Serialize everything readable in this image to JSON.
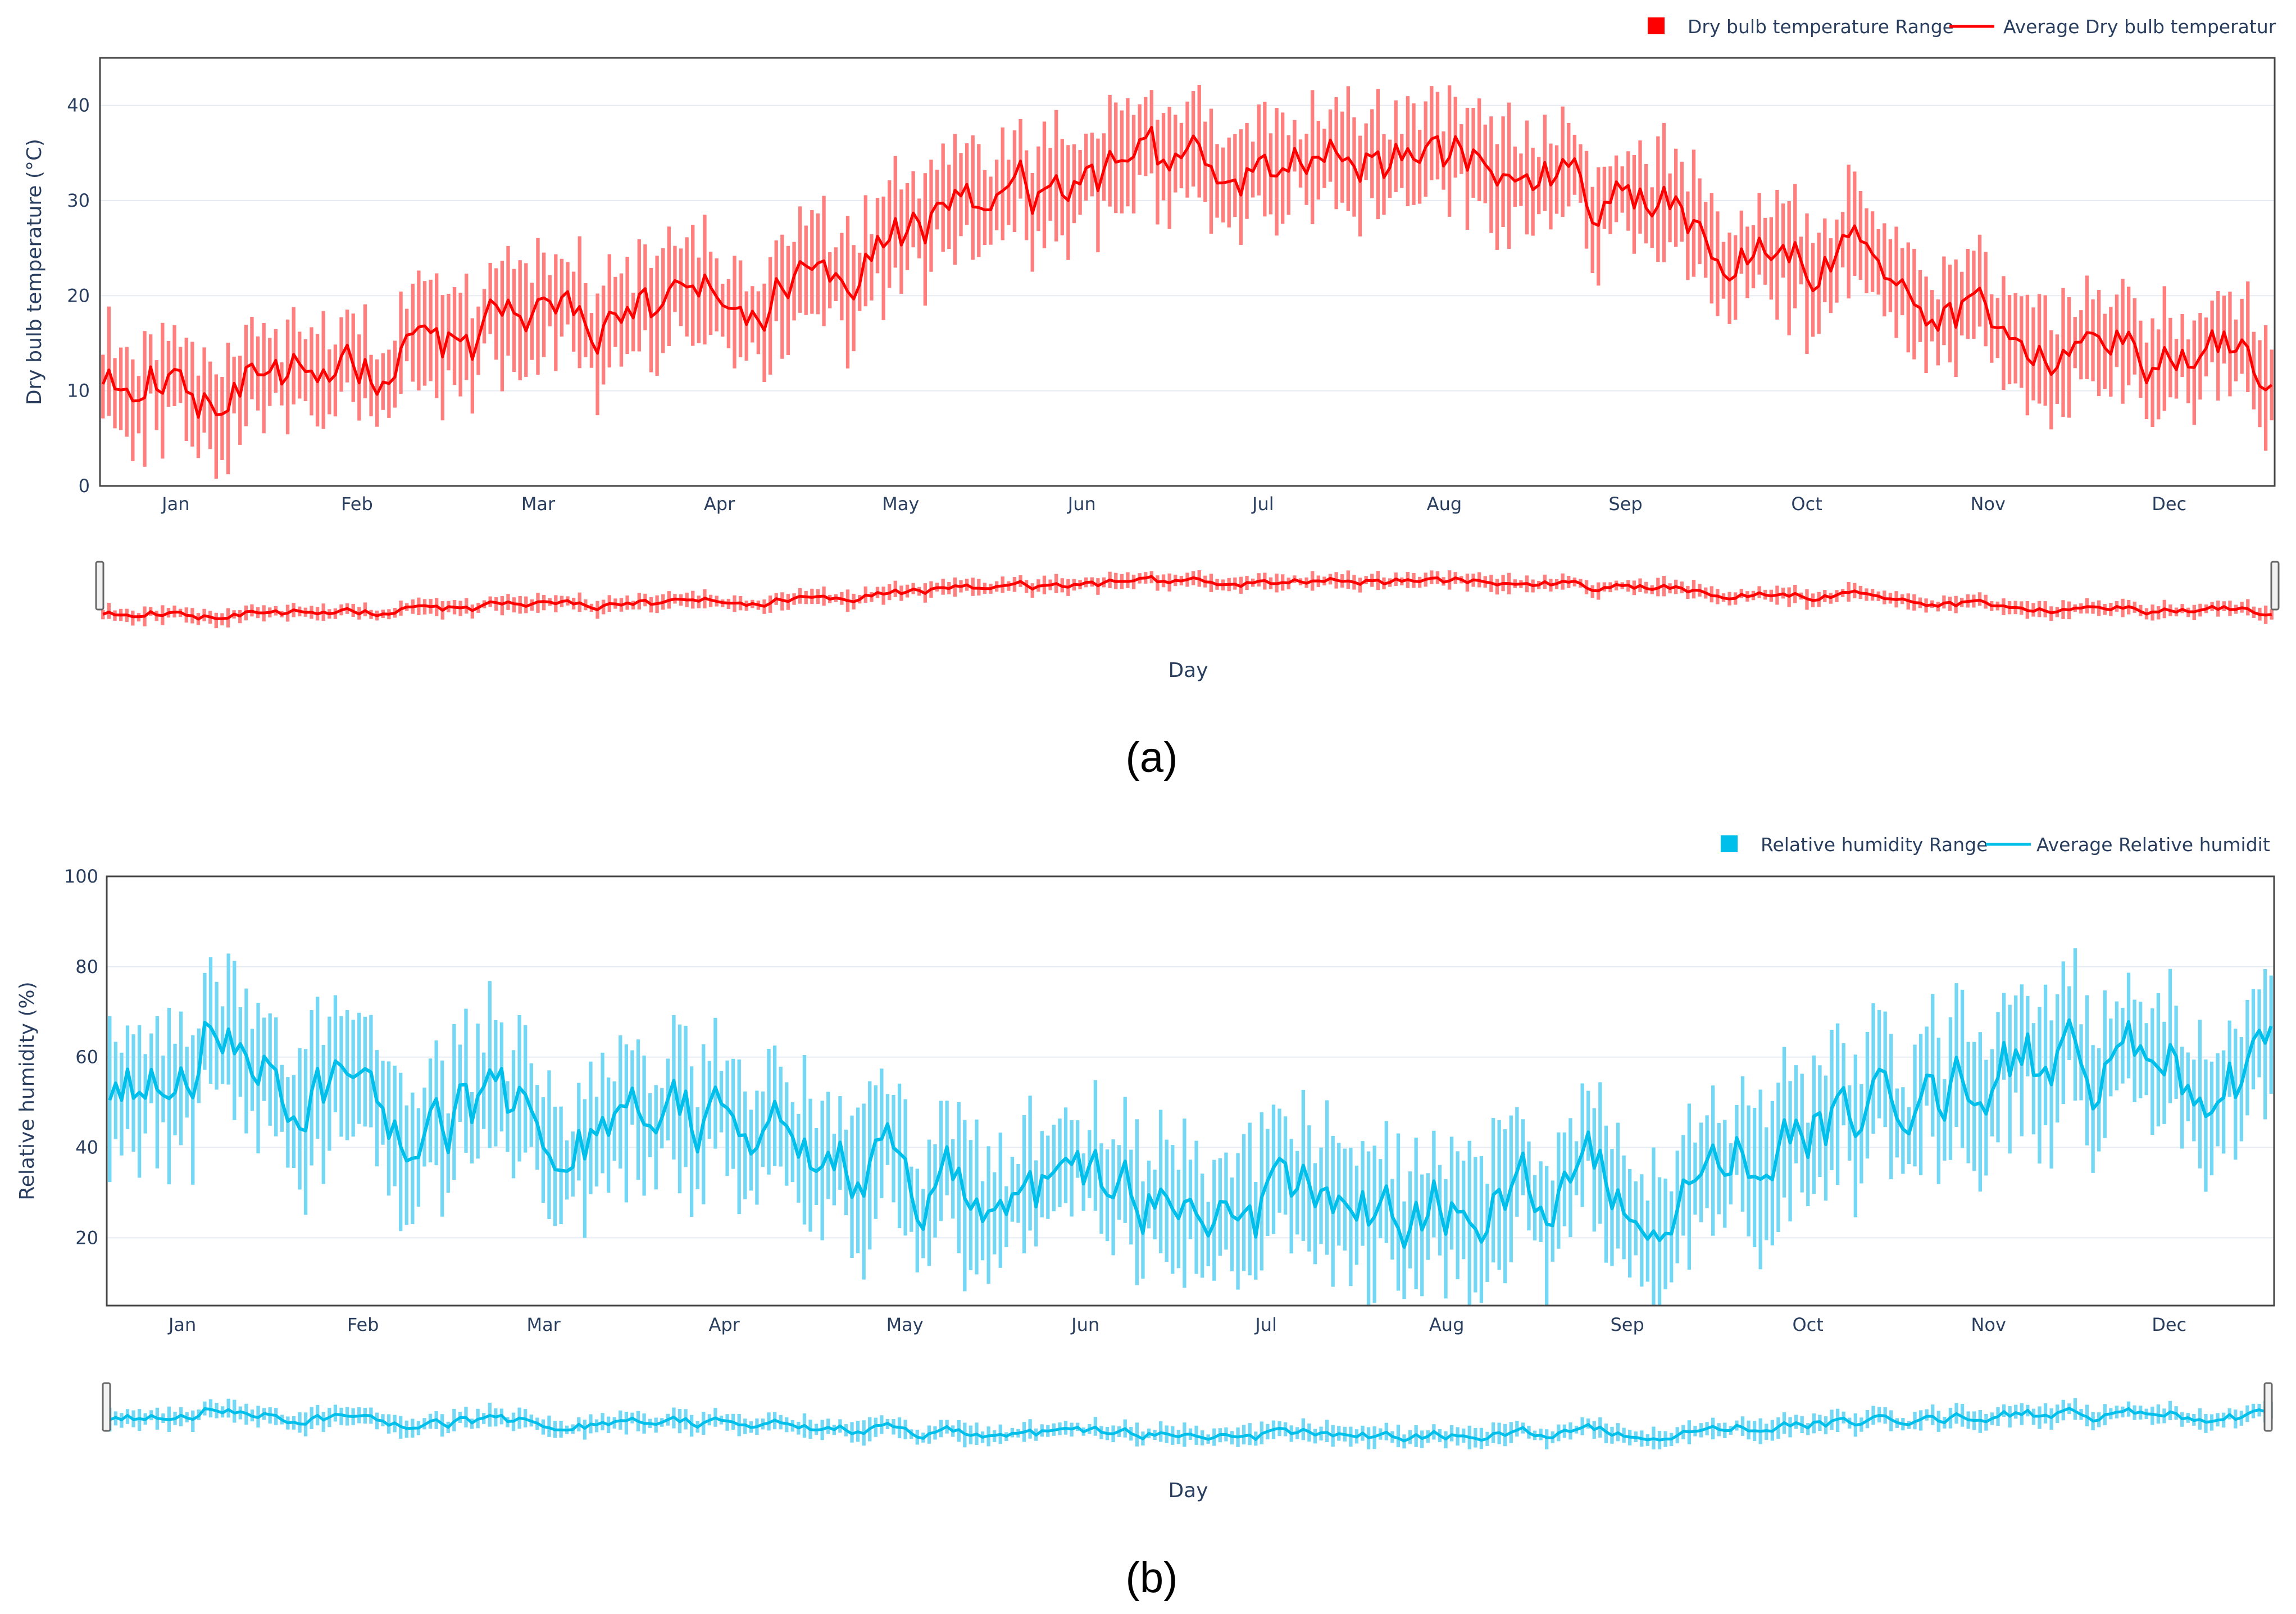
{
  "chart_data": [
    {
      "type": "range-bar-line",
      "panel_label": "(a)",
      "ylabel": "Dry bulb temperature (°C)",
      "xlabel": "Day",
      "ylim": [
        0,
        45
      ],
      "yticks": [
        0,
        10,
        20,
        30,
        40
      ],
      "x_ticks": [
        "Jan",
        "Feb",
        "Mar",
        "Apr",
        "May",
        "Jun",
        "Jul",
        "Aug",
        "Sep",
        "Oct",
        "Nov",
        "Dec"
      ],
      "legend": {
        "range_label": "Dry bulb temperature Range",
        "avg_label": "Average Dry bulb temperatur",
        "placement": "top-right"
      },
      "color": "#ff0000",
      "range_color": "#ff7f7f",
      "grid": true,
      "rangeslider": true,
      "days": 365,
      "monthly_avg": [
        11.5,
        12.5,
        17.0,
        20.0,
        27.0,
        31.5,
        34.0,
        34.0,
        29.0,
        24.0,
        17.5,
        13.0
      ],
      "daily_spread": 4.5,
      "noise": 2.5,
      "seed": 11
    },
    {
      "type": "range-bar-line",
      "panel_label": "(b)",
      "ylabel": "Relative humidity (%)",
      "xlabel": "Day",
      "ylim": [
        5,
        100
      ],
      "yticks": [
        20,
        40,
        60,
        80,
        100
      ],
      "x_ticks": [
        "Jan",
        "Feb",
        "Mar",
        "Apr",
        "May",
        "Jun",
        "Jul",
        "Aug",
        "Sep",
        "Oct",
        "Nov",
        "Dec"
      ],
      "legend": {
        "range_label": "Relative humidity Range",
        "avg_label": "Average Relative humidit",
        "placement": "top-right"
      },
      "color": "#00bfea",
      "range_color": "#74d8f4",
      "grid": true,
      "rangeslider": true,
      "days": 365,
      "monthly_avg": [
        58,
        50,
        45,
        42,
        33,
        27,
        27,
        30,
        35,
        45,
        58,
        55
      ],
      "daily_spread": 12,
      "noise": 7,
      "seed": 29
    }
  ]
}
